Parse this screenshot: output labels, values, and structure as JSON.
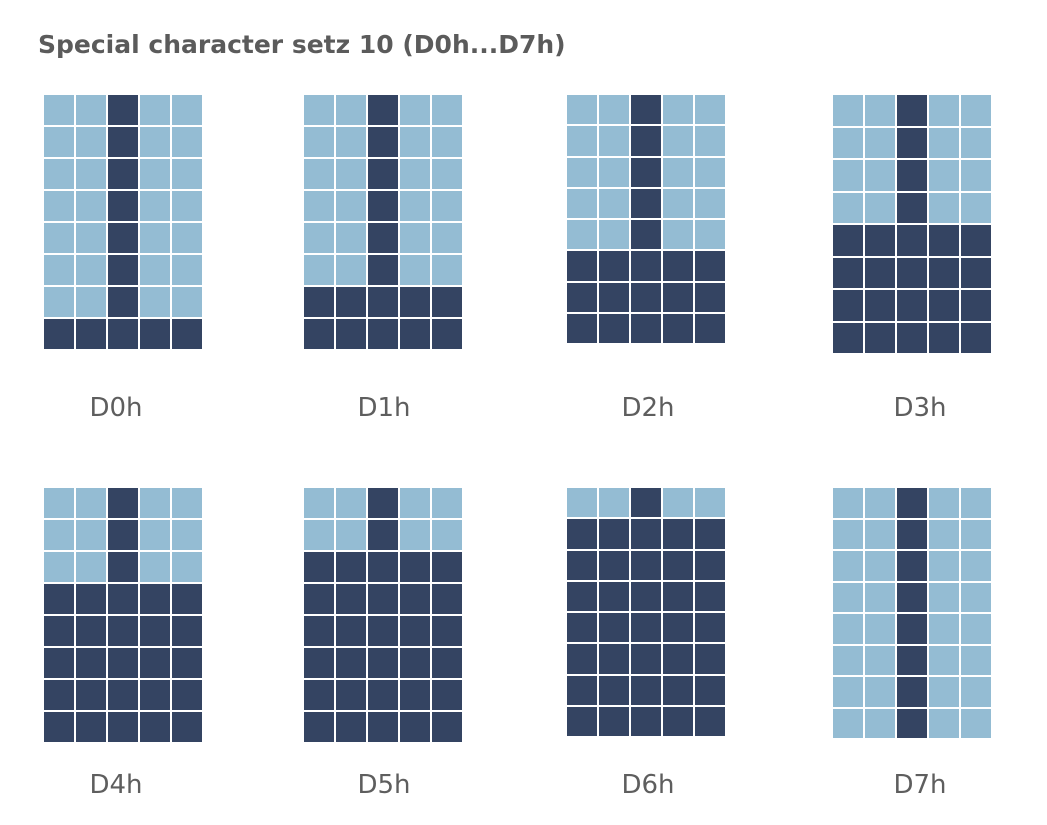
{
  "title": "Special character setz 10 (D0h...D7h)",
  "colors": {
    "on": "#344462",
    "off": "#94bcd3"
  },
  "glyphs": [
    {
      "label": "D0h",
      "rows": [
        "00100",
        "00100",
        "00100",
        "00100",
        "00100",
        "00100",
        "00100",
        "11111"
      ]
    },
    {
      "label": "D1h",
      "rows": [
        "00100",
        "00100",
        "00100",
        "00100",
        "00100",
        "00100",
        "11111",
        "11111"
      ]
    },
    {
      "label": "D2h",
      "rows": [
        "00100",
        "00100",
        "00100",
        "00100",
        "00100",
        "11111",
        "11111",
        "11111"
      ]
    },
    {
      "label": "D3h",
      "rows": [
        "00100",
        "00100",
        "00100",
        "00100",
        "11111",
        "11111",
        "11111",
        "11111"
      ]
    },
    {
      "label": "D4h",
      "rows": [
        "00100",
        "00100",
        "00100",
        "11111",
        "11111",
        "11111",
        "11111",
        "11111"
      ]
    },
    {
      "label": "D5h",
      "rows": [
        "00100",
        "00100",
        "11111",
        "11111",
        "11111",
        "11111",
        "11111",
        "11111"
      ]
    },
    {
      "label": "D6h",
      "rows": [
        "00100",
        "11111",
        "11111",
        "11111",
        "11111",
        "11111",
        "11111",
        "11111"
      ]
    },
    {
      "label": "D7h",
      "rows": [
        "00100",
        "00100",
        "00100",
        "00100",
        "00100",
        "00100",
        "00100",
        "00100"
      ]
    }
  ]
}
